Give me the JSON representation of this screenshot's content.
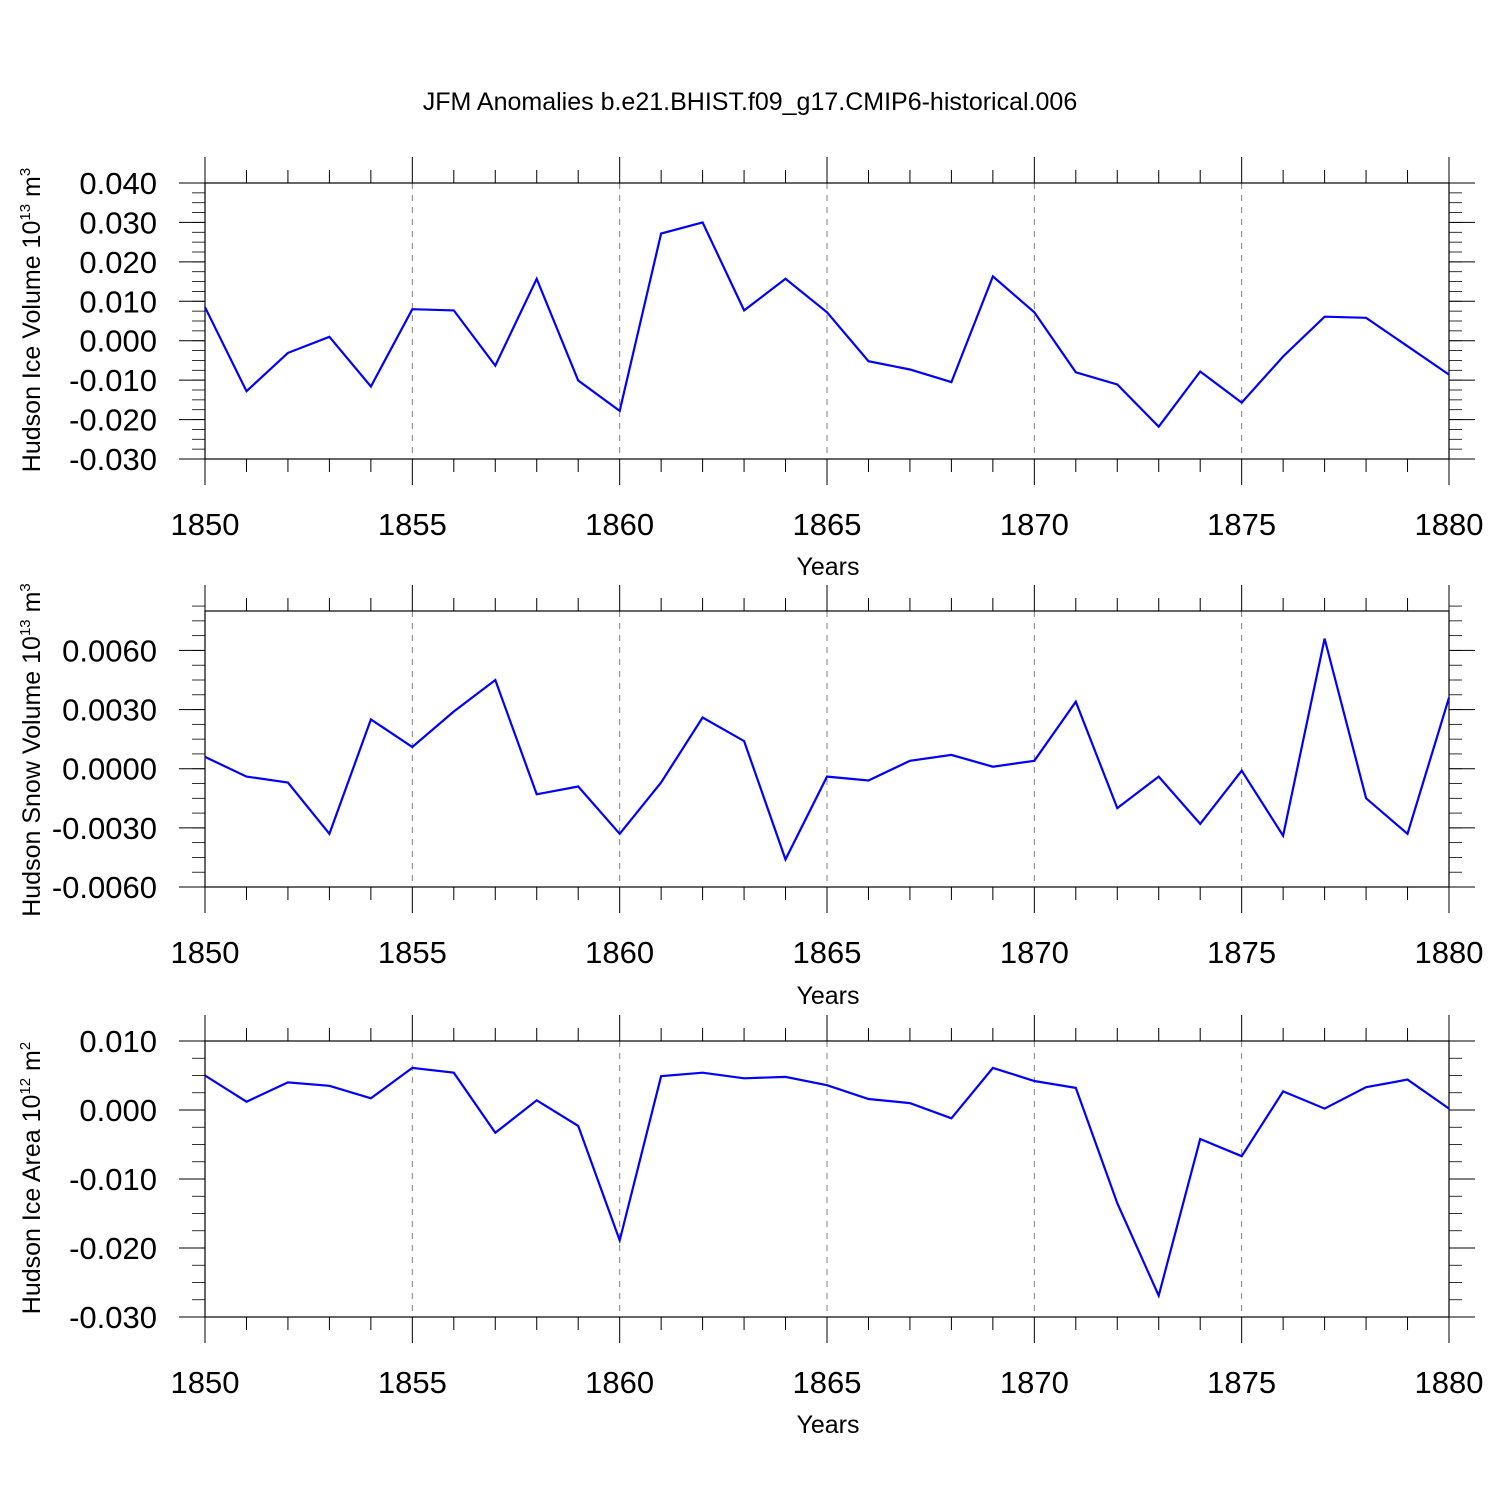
{
  "title": "JFM Anomalies b.e21.BHIST.f09_g17.CMIP6-historical.006",
  "colors": {
    "line": "#0000ff",
    "axis": "#000000",
    "grid": "#808080"
  },
  "chart_data": [
    {
      "type": "line",
      "ylabel": "Hudson Ice Volume 10",
      "ylabel_exp": "13",
      "ylabel_unit": " m",
      "ylabel_unit_exp": "3",
      "xlabel": "Years",
      "xlim": [
        1850,
        1880
      ],
      "ylim": [
        -0.03,
        0.04
      ],
      "ytick_values": [
        0.04,
        0.03,
        0.02,
        0.01,
        0.0,
        -0.01,
        -0.02,
        -0.03
      ],
      "ytick_labels": [
        "0.040",
        "0.030",
        "0.020",
        "0.010",
        "0.000",
        "-0.010",
        "-0.020",
        "-0.030"
      ],
      "xtick_labels": [
        "1850",
        "1855",
        "1860",
        "1865",
        "1870",
        "1875",
        "1880"
      ],
      "grid": "vertical dashed at major x ticks",
      "series": [
        {
          "x": [
            1850,
            1851,
            1852,
            1853,
            1854,
            1855,
            1856,
            1857,
            1858,
            1859,
            1860,
            1861,
            1862,
            1863,
            1864,
            1865,
            1866,
            1867,
            1868,
            1869,
            1870,
            1871,
            1872,
            1873,
            1874,
            1875,
            1876,
            1877,
            1878,
            1879,
            1880
          ],
          "values": [
            0.0085,
            -0.0128,
            -0.0031,
            0.001,
            -0.0116,
            0.008,
            0.0077,
            -0.0063,
            0.0157,
            -0.0101,
            -0.0178,
            0.0272,
            0.03,
            0.0077,
            0.0157,
            0.0072,
            -0.0052,
            -0.0073,
            -0.0105,
            0.0163,
            0.0072,
            -0.008,
            -0.0111,
            -0.0218,
            -0.0078,
            -0.0157,
            -0.004,
            0.0061,
            0.0058,
            -0.0014,
            -0.0086
          ]
        }
      ]
    },
    {
      "type": "line",
      "ylabel": "Hudson Snow Volume 10",
      "ylabel_exp": "13",
      "ylabel_unit": " m",
      "ylabel_unit_exp": "3",
      "xlabel": "Years",
      "xlim": [
        1850,
        1880
      ],
      "ylim": [
        -0.006,
        0.008
      ],
      "ytick_values": [
        0.006,
        0.003,
        0.0,
        -0.003,
        -0.006
      ],
      "ytick_labels": [
        "0.0060",
        "0.0030",
        "0.0000",
        "-0.0030",
        "-0.0060"
      ],
      "xtick_labels": [
        "1850",
        "1855",
        "1860",
        "1865",
        "1870",
        "1875",
        "1880"
      ],
      "grid": "vertical dashed at major x ticks",
      "series": [
        {
          "x": [
            1850,
            1851,
            1852,
            1853,
            1854,
            1855,
            1856,
            1857,
            1858,
            1859,
            1860,
            1861,
            1862,
            1863,
            1864,
            1865,
            1866,
            1867,
            1868,
            1869,
            1870,
            1871,
            1872,
            1873,
            1874,
            1875,
            1876,
            1877,
            1878,
            1879,
            1880
          ],
          "values": [
            0.0006,
            -0.0004,
            -0.0007,
            -0.0033,
            0.0025,
            0.0011,
            0.0029,
            0.0045,
            -0.0013,
            -0.0009,
            -0.0033,
            -0.0007,
            0.0026,
            0.0014,
            -0.0046,
            -0.0004,
            -0.0006,
            0.0004,
            0.0007,
            0.0001,
            0.0004,
            0.0034,
            -0.002,
            -0.0004,
            -0.0028,
            -0.0001,
            -0.0034,
            0.0066,
            -0.0015,
            -0.0033,
            0.0036
          ]
        }
      ]
    },
    {
      "type": "line",
      "ylabel": "Hudson Ice Area 10",
      "ylabel_exp": "12",
      "ylabel_unit": " m",
      "ylabel_unit_exp": "2",
      "xlabel": "Years",
      "xlim": [
        1850,
        1880
      ],
      "ylim": [
        -0.03,
        0.01
      ],
      "ytick_values": [
        0.01,
        0.0,
        -0.01,
        -0.02,
        -0.03
      ],
      "ytick_labels": [
        "0.010",
        "0.000",
        "-0.010",
        "-0.020",
        "-0.030"
      ],
      "xtick_labels": [
        "1850",
        "1855",
        "1860",
        "1865",
        "1870",
        "1875",
        "1880"
      ],
      "grid": "vertical dashed at major x ticks",
      "series": [
        {
          "x": [
            1850,
            1851,
            1852,
            1853,
            1854,
            1855,
            1856,
            1857,
            1858,
            1859,
            1860,
            1861,
            1862,
            1863,
            1864,
            1865,
            1866,
            1867,
            1868,
            1869,
            1870,
            1871,
            1872,
            1873,
            1874,
            1875,
            1876,
            1877,
            1878,
            1879,
            1880
          ],
          "values": [
            0.005,
            0.0012,
            0.004,
            0.0035,
            0.0017,
            0.0061,
            0.0054,
            -0.0033,
            0.0014,
            -0.0023,
            -0.0189,
            0.0049,
            0.0054,
            0.0046,
            0.0048,
            0.0036,
            0.0016,
            0.001,
            -0.0012,
            0.0061,
            0.0042,
            0.0032,
            -0.0135,
            -0.0269,
            -0.0042,
            -0.0067,
            0.0027,
            0.0002,
            0.0033,
            0.0044,
            0.0002
          ]
        }
      ]
    }
  ]
}
